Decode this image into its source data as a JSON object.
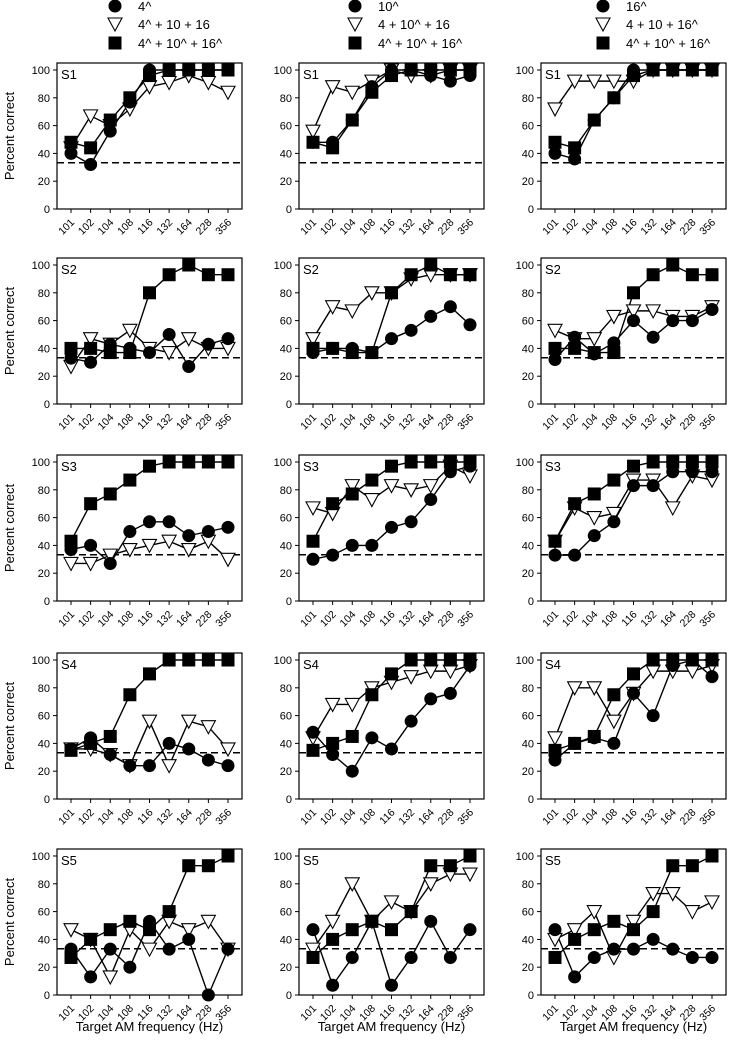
{
  "figure": {
    "y_axis_label": "Percent correct",
    "x_axis_label": "Target AM frequency (Hz)",
    "x_tick_labels": [
      "101",
      "102",
      "104",
      "108",
      "116",
      "132",
      "164",
      "228",
      "356"
    ],
    "y_tick_labels": [
      "0",
      "20",
      "40",
      "60",
      "80",
      "100"
    ],
    "chance_level": 33.3
  },
  "legends": [
    [
      {
        "marker": "filled-circle",
        "label": "4^"
      },
      {
        "marker": "open-triangle-down",
        "label": "4^ + 10 + 16"
      },
      {
        "marker": "filled-square",
        "label": "4^ + 10^ + 16^"
      }
    ],
    [
      {
        "marker": "filled-circle",
        "label": "10^"
      },
      {
        "marker": "open-triangle-down",
        "label": "4 + 10^ + 16"
      },
      {
        "marker": "filled-square",
        "label": "4^ + 10^ + 16^"
      }
    ],
    [
      {
        "marker": "filled-circle",
        "label": "16^"
      },
      {
        "marker": "open-triangle-down",
        "label": "4 + 10 + 16^"
      },
      {
        "marker": "filled-square",
        "label": "4^ + 10^ + 16^"
      }
    ]
  ],
  "chart_data": [
    {
      "type": "line",
      "subject": "S1",
      "column": 1,
      "ylim": [
        0,
        100
      ],
      "categories": [
        "101",
        "102",
        "104",
        "108",
        "116",
        "132",
        "164",
        "228",
        "356"
      ],
      "series": [
        {
          "name": "4^",
          "marker": "filled-circle",
          "values": [
            40,
            32,
            56,
            77,
            100,
            100,
            100,
            100,
            100
          ]
        },
        {
          "name": "4^ + 10 + 16",
          "marker": "open-triangle-down",
          "values": [
            44,
            67,
            60,
            72,
            88,
            91,
            96,
            91,
            84
          ]
        },
        {
          "name": "4^ + 10^ + 16^",
          "marker": "filled-square",
          "values": [
            48,
            44,
            64,
            80,
            96,
            100,
            100,
            100,
            100
          ]
        }
      ]
    },
    {
      "type": "line",
      "subject": "S1",
      "column": 2,
      "ylim": [
        0,
        100
      ],
      "categories": [
        "101",
        "102",
        "104",
        "108",
        "116",
        "132",
        "164",
        "228",
        "356"
      ],
      "series": [
        {
          "name": "10^",
          "marker": "filled-circle",
          "values": [
            48,
            48,
            64,
            88,
            100,
            100,
            96,
            92,
            96
          ]
        },
        {
          "name": "4 + 10^ + 16",
          "marker": "open-triangle-down",
          "values": [
            56,
            88,
            84,
            92,
            100,
            96,
            96,
            100,
            100
          ]
        },
        {
          "name": "4^ + 10^ + 16^",
          "marker": "filled-square",
          "values": [
            48,
            44,
            64,
            84,
            96,
            100,
            100,
            100,
            100
          ]
        }
      ]
    },
    {
      "type": "line",
      "subject": "S1",
      "column": 3,
      "ylim": [
        0,
        100
      ],
      "categories": [
        "101",
        "102",
        "104",
        "108",
        "116",
        "132",
        "164",
        "228",
        "356"
      ],
      "series": [
        {
          "name": "16^",
          "marker": "filled-circle",
          "values": [
            40,
            36,
            64,
            80,
            100,
            100,
            100,
            100,
            100
          ]
        },
        {
          "name": "4 + 10 + 16^",
          "marker": "open-triangle-down",
          "values": [
            72,
            92,
            92,
            92,
            92,
            100,
            100,
            100,
            100
          ]
        },
        {
          "name": "4^ + 10^ + 16^",
          "marker": "filled-square",
          "values": [
            48,
            44,
            64,
            80,
            96,
            100,
            100,
            100,
            100
          ]
        }
      ]
    },
    {
      "type": "line",
      "subject": "S2",
      "column": 1,
      "ylim": [
        0,
        100
      ],
      "categories": [
        "101",
        "102",
        "104",
        "108",
        "116",
        "132",
        "164",
        "228",
        "356"
      ],
      "series": [
        {
          "name": "4^",
          "marker": "filled-circle",
          "values": [
            33,
            30,
            43,
            40,
            37,
            50,
            27,
            43,
            47
          ]
        },
        {
          "name": "4^ + 10 + 16",
          "marker": "open-triangle-down",
          "values": [
            27,
            47,
            43,
            53,
            40,
            37,
            47,
            40,
            40
          ]
        },
        {
          "name": "4^ + 10^ + 16^",
          "marker": "filled-square",
          "values": [
            40,
            40,
            37,
            37,
            80,
            93,
            100,
            93,
            93
          ]
        }
      ]
    },
    {
      "type": "line",
      "subject": "S2",
      "column": 2,
      "ylim": [
        0,
        100
      ],
      "categories": [
        "101",
        "102",
        "104",
        "108",
        "116",
        "132",
        "164",
        "228",
        "356"
      ],
      "series": [
        {
          "name": "10^",
          "marker": "filled-circle",
          "values": [
            37,
            40,
            40,
            37,
            47,
            53,
            63,
            70,
            57
          ]
        },
        {
          "name": "4 + 10^ + 16",
          "marker": "open-triangle-down",
          "values": [
            47,
            70,
            67,
            80,
            80,
            90,
            93,
            93,
            93
          ]
        },
        {
          "name": "4^ + 10^ + 16^",
          "marker": "filled-square",
          "values": [
            40,
            40,
            37,
            37,
            80,
            93,
            100,
            93,
            93
          ]
        }
      ]
    },
    {
      "type": "line",
      "subject": "S2",
      "column": 3,
      "ylim": [
        0,
        100
      ],
      "categories": [
        "101",
        "102",
        "104",
        "108",
        "116",
        "132",
        "164",
        "228",
        "356"
      ],
      "series": [
        {
          "name": "16^",
          "marker": "filled-circle",
          "values": [
            32,
            48,
            36,
            44,
            60,
            48,
            60,
            60,
            68
          ]
        },
        {
          "name": "4 + 10 + 16^",
          "marker": "open-triangle-down",
          "values": [
            53,
            47,
            47,
            63,
            67,
            67,
            63,
            63,
            70
          ]
        },
        {
          "name": "4^ + 10^ + 16^",
          "marker": "filled-square",
          "values": [
            40,
            40,
            37,
            37,
            80,
            93,
            100,
            93,
            93
          ]
        }
      ]
    },
    {
      "type": "line",
      "subject": "S3",
      "column": 1,
      "ylim": [
        0,
        100
      ],
      "categories": [
        "101",
        "102",
        "104",
        "108",
        "116",
        "132",
        "164",
        "228",
        "356"
      ],
      "series": [
        {
          "name": "4^",
          "marker": "filled-circle",
          "values": [
            37,
            40,
            27,
            50,
            57,
            57,
            47,
            50,
            53
          ]
        },
        {
          "name": "4^ + 10 + 16",
          "marker": "open-triangle-down",
          "values": [
            27,
            27,
            33,
            37,
            40,
            43,
            37,
            43,
            30
          ]
        },
        {
          "name": "4^ + 10^ + 16^",
          "marker": "filled-square",
          "values": [
            43,
            70,
            77,
            87,
            97,
            100,
            100,
            100,
            100
          ]
        }
      ]
    },
    {
      "type": "line",
      "subject": "S3",
      "column": 2,
      "ylim": [
        0,
        100
      ],
      "categories": [
        "101",
        "102",
        "104",
        "108",
        "116",
        "132",
        "164",
        "228",
        "356"
      ],
      "series": [
        {
          "name": "10^",
          "marker": "filled-circle",
          "values": [
            30,
            33,
            40,
            40,
            53,
            57,
            73,
            93,
            97
          ]
        },
        {
          "name": "4 + 10^ + 16",
          "marker": "open-triangle-down",
          "values": [
            67,
            63,
            83,
            73,
            83,
            80,
            83,
            97,
            90
          ]
        },
        {
          "name": "4^ + 10^ + 16^",
          "marker": "filled-square",
          "values": [
            43,
            70,
            77,
            87,
            97,
            100,
            100,
            100,
            100
          ]
        }
      ]
    },
    {
      "type": "line",
      "subject": "S3",
      "column": 3,
      "ylim": [
        0,
        100
      ],
      "categories": [
        "101",
        "102",
        "104",
        "108",
        "116",
        "132",
        "164",
        "228",
        "356"
      ],
      "series": [
        {
          "name": "16^",
          "marker": "filled-circle",
          "values": [
            33,
            33,
            47,
            57,
            83,
            83,
            93,
            93,
            93
          ]
        },
        {
          "name": "4 + 10 + 16^",
          "marker": "open-triangle-down",
          "values": [
            43,
            67,
            60,
            63,
            87,
            87,
            67,
            90,
            87
          ]
        },
        {
          "name": "4^ + 10^ + 16^",
          "marker": "filled-square",
          "values": [
            43,
            70,
            77,
            87,
            97,
            100,
            100,
            100,
            100
          ]
        }
      ]
    },
    {
      "type": "line",
      "subject": "S4",
      "column": 1,
      "ylim": [
        0,
        100
      ],
      "categories": [
        "101",
        "102",
        "104",
        "108",
        "116",
        "132",
        "164",
        "228",
        "356"
      ],
      "series": [
        {
          "name": "4^",
          "marker": "filled-circle",
          "values": [
            36,
            44,
            32,
            24,
            24,
            40,
            36,
            28,
            24
          ]
        },
        {
          "name": "4^ + 10 + 16",
          "marker": "open-triangle-down",
          "values": [
            36,
            36,
            32,
            24,
            56,
            24,
            56,
            52,
            36
          ]
        },
        {
          "name": "4^ + 10^ + 16^",
          "marker": "filled-square",
          "values": [
            35,
            40,
            45,
            75,
            90,
            100,
            100,
            100,
            100
          ]
        }
      ]
    },
    {
      "type": "line",
      "subject": "S4",
      "column": 2,
      "ylim": [
        0,
        100
      ],
      "categories": [
        "101",
        "102",
        "104",
        "108",
        "116",
        "132",
        "164",
        "228",
        "356"
      ],
      "series": [
        {
          "name": "10^",
          "marker": "filled-circle",
          "values": [
            48,
            32,
            20,
            44,
            36,
            56,
            72,
            76,
            96
          ]
        },
        {
          "name": "4 + 10^ + 16",
          "marker": "open-triangle-down",
          "values": [
            44,
            68,
            68,
            80,
            84,
            88,
            92,
            92,
            96
          ]
        },
        {
          "name": "4^ + 10^ + 16^",
          "marker": "filled-square",
          "values": [
            35,
            40,
            45,
            75,
            90,
            100,
            100,
            100,
            100
          ]
        }
      ]
    },
    {
      "type": "line",
      "subject": "S4",
      "column": 3,
      "ylim": [
        0,
        100
      ],
      "categories": [
        "101",
        "102",
        "104",
        "108",
        "116",
        "132",
        "164",
        "228",
        "356"
      ],
      "series": [
        {
          "name": "16^",
          "marker": "filled-circle",
          "values": [
            28,
            40,
            44,
            40,
            76,
            60,
            96,
            100,
            88
          ]
        },
        {
          "name": "4 + 10 + 16^",
          "marker": "open-triangle-down",
          "values": [
            44,
            80,
            80,
            56,
            76,
            92,
            92,
            92,
            96
          ]
        },
        {
          "name": "4^ + 10^ + 16^",
          "marker": "filled-square",
          "values": [
            35,
            40,
            45,
            75,
            90,
            100,
            100,
            100,
            100
          ]
        }
      ]
    },
    {
      "type": "line",
      "subject": "S5",
      "column": 1,
      "ylim": [
        0,
        100
      ],
      "categories": [
        "101",
        "102",
        "104",
        "108",
        "116",
        "132",
        "164",
        "228",
        "356"
      ],
      "series": [
        {
          "name": "4^",
          "marker": "filled-circle",
          "values": [
            33,
            13,
            33,
            20,
            53,
            33,
            40,
            0,
            33
          ]
        },
        {
          "name": "4^ + 10 + 16",
          "marker": "open-triangle-down",
          "values": [
            47,
            40,
            13,
            47,
            33,
            53,
            47,
            53,
            33
          ]
        },
        {
          "name": "4^ + 10^ + 16^",
          "marker": "filled-square",
          "values": [
            27,
            40,
            47,
            53,
            47,
            60,
            93,
            93,
            100
          ]
        }
      ]
    },
    {
      "type": "line",
      "subject": "S5",
      "column": 2,
      "ylim": [
        0,
        100
      ],
      "categories": [
        "101",
        "102",
        "104",
        "108",
        "116",
        "132",
        "164",
        "228",
        "356"
      ],
      "series": [
        {
          "name": "10^",
          "marker": "filled-circle",
          "values": [
            47,
            7,
            27,
            53,
            7,
            27,
            53,
            27,
            47
          ]
        },
        {
          "name": "4 + 10^ + 16",
          "marker": "open-triangle-down",
          "values": [
            33,
            53,
            80,
            53,
            67,
            60,
            80,
            87,
            87
          ]
        },
        {
          "name": "4^ + 10^ + 16^",
          "marker": "filled-square",
          "values": [
            27,
            40,
            47,
            53,
            47,
            60,
            93,
            93,
            100
          ]
        }
      ]
    },
    {
      "type": "line",
      "subject": "S5",
      "column": 3,
      "ylim": [
        0,
        100
      ],
      "categories": [
        "101",
        "102",
        "104",
        "108",
        "116",
        "132",
        "164",
        "228",
        "356"
      ],
      "series": [
        {
          "name": "16^",
          "marker": "filled-circle",
          "values": [
            47,
            13,
            27,
            33,
            33,
            40,
            33,
            27,
            27
          ]
        },
        {
          "name": "4 + 10 + 16^",
          "marker": "open-triangle-down",
          "values": [
            40,
            47,
            60,
            27,
            53,
            73,
            73,
            60,
            67
          ]
        },
        {
          "name": "4^ + 10^ + 16^",
          "marker": "filled-square",
          "values": [
            27,
            40,
            47,
            53,
            47,
            60,
            93,
            93,
            100
          ]
        }
      ]
    }
  ]
}
